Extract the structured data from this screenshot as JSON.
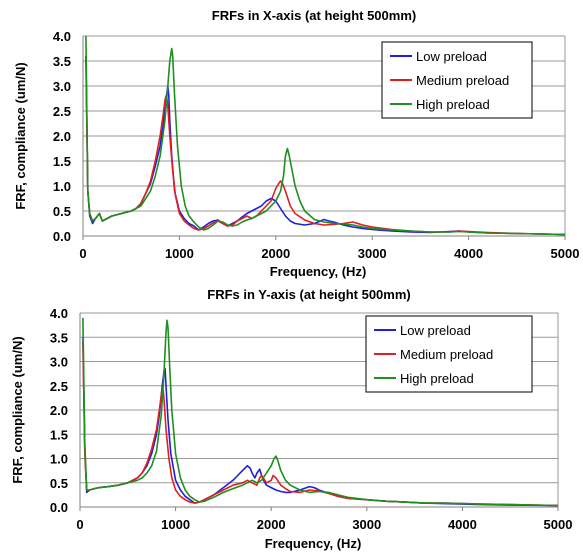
{
  "chart_data": [
    {
      "type": "line",
      "title": "FRFs in X-axis (at height 500mm)",
      "xlabel": "Frequency, (Hz)",
      "ylabel": "FRF, compliance (um/N)",
      "xlim": [
        0,
        5000
      ],
      "ylim": [
        0,
        4.0
      ],
      "xticks": [
        "0",
        "1000",
        "2000",
        "3000",
        "4000",
        "5000"
      ],
      "yticks": [
        "0.0",
        "0.5",
        "1.0",
        "1.5",
        "2.0",
        "2.5",
        "3.0",
        "3.5",
        "4.0"
      ],
      "grid": "horizontal",
      "legend": "top-right",
      "series": [
        {
          "name": "Low preload",
          "color": "#1f1fe0",
          "x": [
            30,
            50,
            70,
            100,
            130,
            170,
            200,
            250,
            300,
            400,
            500,
            550,
            600,
            650,
            700,
            750,
            800,
            830,
            860,
            880,
            890,
            900,
            920,
            950,
            1000,
            1050,
            1100,
            1150,
            1200,
            1250,
            1300,
            1350,
            1400,
            1450,
            1500,
            1550,
            1600,
            1650,
            1700,
            1750,
            1800,
            1850,
            1900,
            1950,
            2000,
            2050,
            2100,
            2150,
            2200,
            2300,
            2400,
            2500,
            2550,
            2600,
            2700,
            2800,
            2900,
            3000,
            3200,
            3400,
            3600,
            3800,
            3900,
            4000,
            4200,
            4500,
            5000
          ],
          "y": [
            3.6,
            0.9,
            0.4,
            0.25,
            0.35,
            0.45,
            0.3,
            0.35,
            0.4,
            0.45,
            0.5,
            0.55,
            0.65,
            0.85,
            1.05,
            1.4,
            1.8,
            2.2,
            2.7,
            3.0,
            2.8,
            2.3,
            1.6,
            0.9,
            0.5,
            0.35,
            0.25,
            0.2,
            0.12,
            0.18,
            0.25,
            0.3,
            0.32,
            0.25,
            0.2,
            0.25,
            0.3,
            0.38,
            0.45,
            0.5,
            0.55,
            0.6,
            0.7,
            0.75,
            0.7,
            0.55,
            0.4,
            0.3,
            0.25,
            0.22,
            0.25,
            0.33,
            0.3,
            0.28,
            0.22,
            0.18,
            0.15,
            0.13,
            0.1,
            0.08,
            0.07,
            0.09,
            0.1,
            0.08,
            0.06,
            0.05,
            0.03
          ]
        },
        {
          "name": "Medium preload",
          "color": "#e01f1f",
          "x": [
            30,
            50,
            70,
            100,
            130,
            170,
            200,
            250,
            300,
            400,
            500,
            550,
            600,
            650,
            700,
            750,
            800,
            830,
            850,
            860,
            870,
            880,
            900,
            930,
            960,
            1000,
            1050,
            1100,
            1150,
            1200,
            1250,
            1300,
            1350,
            1400,
            1450,
            1500,
            1550,
            1600,
            1650,
            1700,
            1750,
            1800,
            1850,
            1900,
            1950,
            2000,
            2030,
            2050,
            2070,
            2100,
            2150,
            2200,
            2300,
            2400,
            2500,
            2600,
            2700,
            2800,
            2900,
            3000,
            3200,
            3400,
            3600,
            3800,
            3900,
            4000,
            4200,
            4500,
            5000
          ],
          "y": [
            3.6,
            0.9,
            0.45,
            0.3,
            0.35,
            0.45,
            0.3,
            0.35,
            0.4,
            0.45,
            0.5,
            0.55,
            0.65,
            0.85,
            1.1,
            1.5,
            2.0,
            2.4,
            2.7,
            2.8,
            2.75,
            2.6,
            2.0,
            1.3,
            0.8,
            0.45,
            0.3,
            0.22,
            0.15,
            0.12,
            0.15,
            0.2,
            0.26,
            0.3,
            0.25,
            0.2,
            0.22,
            0.3,
            0.35,
            0.4,
            0.35,
            0.4,
            0.5,
            0.6,
            0.7,
            0.95,
            1.05,
            1.1,
            1.05,
            0.9,
            0.6,
            0.45,
            0.32,
            0.25,
            0.22,
            0.23,
            0.25,
            0.28,
            0.22,
            0.18,
            0.13,
            0.1,
            0.08,
            0.08,
            0.1,
            0.09,
            0.07,
            0.05,
            0.03
          ]
        },
        {
          "name": "High preload",
          "color": "#1f8f1f",
          "x": [
            30,
            50,
            70,
            100,
            130,
            170,
            200,
            250,
            300,
            400,
            500,
            550,
            600,
            650,
            700,
            750,
            800,
            850,
            880,
            900,
            920,
            930,
            950,
            980,
            1020,
            1060,
            1100,
            1150,
            1200,
            1250,
            1300,
            1350,
            1400,
            1450,
            1500,
            1550,
            1600,
            1650,
            1700,
            1750,
            1800,
            1850,
            1900,
            1950,
            2000,
            2050,
            2080,
            2100,
            2120,
            2140,
            2170,
            2200,
            2250,
            2300,
            2400,
            2500,
            2600,
            2700,
            2800,
            2900,
            3000,
            3200,
            3400,
            3600,
            3800,
            3900,
            4000,
            4200,
            4500,
            5000
          ],
          "y": [
            4.0,
            0.9,
            0.45,
            0.3,
            0.35,
            0.45,
            0.3,
            0.35,
            0.4,
            0.45,
            0.5,
            0.55,
            0.6,
            0.75,
            0.9,
            1.2,
            1.6,
            2.3,
            3.0,
            3.5,
            3.75,
            3.6,
            2.8,
            1.8,
            1.0,
            0.6,
            0.4,
            0.28,
            0.18,
            0.12,
            0.15,
            0.22,
            0.3,
            0.28,
            0.22,
            0.2,
            0.22,
            0.28,
            0.32,
            0.35,
            0.4,
            0.45,
            0.5,
            0.6,
            0.7,
            0.9,
            1.2,
            1.6,
            1.75,
            1.6,
            1.3,
            1.0,
            0.7,
            0.5,
            0.33,
            0.28,
            0.25,
            0.24,
            0.22,
            0.18,
            0.15,
            0.12,
            0.1,
            0.08,
            0.08,
            0.09,
            0.08,
            0.06,
            0.05,
            0.03
          ]
        }
      ]
    },
    {
      "type": "line",
      "title": "FRFs in Y-axis (at height 500mm)",
      "xlabel": "Frequency, (Hz)",
      "ylabel": "FRF, compliance (um/N)",
      "xlim": [
        0,
        5000
      ],
      "ylim": [
        0,
        4.0
      ],
      "xticks": [
        "0",
        "1000",
        "2000",
        "3000",
        "4000",
        "5000"
      ],
      "yticks": [
        "0.0",
        "0.5",
        "1.0",
        "1.5",
        "2.0",
        "2.5",
        "3.0",
        "3.5",
        "4.0"
      ],
      "grid": "horizontal",
      "legend": "top-right",
      "series": [
        {
          "name": "Low preload",
          "color": "#1f1fe0",
          "x": [
            30,
            50,
            70,
            100,
            150,
            200,
            300,
            400,
            500,
            600,
            650,
            700,
            750,
            800,
            830,
            860,
            880,
            890,
            900,
            920,
            950,
            1000,
            1050,
            1100,
            1150,
            1200,
            1250,
            1300,
            1400,
            1500,
            1600,
            1650,
            1700,
            1750,
            1780,
            1800,
            1830,
            1850,
            1880,
            1900,
            1920,
            1950,
            2000,
            2050,
            2100,
            2150,
            2200,
            2300,
            2400,
            2450,
            2500,
            2600,
            2700,
            2800,
            3000,
            3200,
            3400,
            3600,
            3800,
            4000,
            4200,
            4500,
            5000
          ],
          "y": [
            3.5,
            1.2,
            0.3,
            0.35,
            0.38,
            0.4,
            0.42,
            0.45,
            0.5,
            0.6,
            0.7,
            0.85,
            1.1,
            1.5,
            1.9,
            2.5,
            2.8,
            2.85,
            2.5,
            1.8,
            1.1,
            0.55,
            0.35,
            0.22,
            0.15,
            0.08,
            0.1,
            0.15,
            0.25,
            0.4,
            0.55,
            0.65,
            0.75,
            0.85,
            0.8,
            0.7,
            0.6,
            0.7,
            0.78,
            0.65,
            0.55,
            0.45,
            0.4,
            0.35,
            0.32,
            0.3,
            0.3,
            0.35,
            0.42,
            0.4,
            0.35,
            0.28,
            0.22,
            0.18,
            0.15,
            0.12,
            0.1,
            0.08,
            0.07,
            0.06,
            0.05,
            0.04,
            0.03
          ]
        },
        {
          "name": "Medium preload",
          "color": "#e01f1f",
          "x": [
            30,
            50,
            70,
            100,
            150,
            200,
            300,
            400,
            500,
            600,
            650,
            700,
            750,
            800,
            830,
            850,
            860,
            870,
            880,
            900,
            930,
            960,
            1000,
            1050,
            1100,
            1150,
            1200,
            1250,
            1300,
            1400,
            1500,
            1600,
            1700,
            1750,
            1800,
            1850,
            1880,
            1900,
            1950,
            2000,
            2020,
            2050,
            2100,
            2150,
            2200,
            2300,
            2400,
            2500,
            2600,
            2700,
            2800,
            3000,
            3200,
            3400,
            3600,
            3800,
            4000,
            4200,
            4500,
            5000
          ],
          "y": [
            3.4,
            1.1,
            0.35,
            0.35,
            0.38,
            0.4,
            0.42,
            0.45,
            0.5,
            0.6,
            0.7,
            0.9,
            1.2,
            1.6,
            2.0,
            2.3,
            2.45,
            2.4,
            2.2,
            1.6,
            1.0,
            0.6,
            0.35,
            0.22,
            0.15,
            0.1,
            0.08,
            0.1,
            0.15,
            0.25,
            0.35,
            0.45,
            0.5,
            0.55,
            0.5,
            0.45,
            0.6,
            0.65,
            0.5,
            0.55,
            0.65,
            0.6,
            0.45,
            0.38,
            0.32,
            0.3,
            0.35,
            0.33,
            0.28,
            0.22,
            0.18,
            0.15,
            0.12,
            0.1,
            0.08,
            0.08,
            0.07,
            0.06,
            0.05,
            0.03
          ]
        },
        {
          "name": "High preload",
          "color": "#1f8f1f",
          "x": [
            30,
            50,
            70,
            100,
            150,
            200,
            300,
            400,
            500,
            600,
            650,
            700,
            750,
            800,
            850,
            880,
            900,
            910,
            920,
            940,
            960,
            1000,
            1050,
            1100,
            1150,
            1200,
            1250,
            1300,
            1400,
            1500,
            1600,
            1700,
            1750,
            1800,
            1850,
            1900,
            1950,
            2000,
            2030,
            2050,
            2070,
            2100,
            2150,
            2200,
            2300,
            2400,
            2500,
            2600,
            2700,
            2800,
            3000,
            3200,
            3400,
            3600,
            3800,
            4000,
            4200,
            4500,
            5000
          ],
          "y": [
            3.9,
            1.3,
            0.35,
            0.35,
            0.38,
            0.4,
            0.42,
            0.45,
            0.5,
            0.55,
            0.6,
            0.7,
            0.85,
            1.15,
            1.9,
            2.8,
            3.6,
            3.85,
            3.7,
            2.8,
            2.0,
            1.1,
            0.6,
            0.35,
            0.22,
            0.15,
            0.1,
            0.12,
            0.2,
            0.3,
            0.38,
            0.45,
            0.5,
            0.55,
            0.5,
            0.55,
            0.7,
            0.85,
            1.0,
            1.05,
            0.95,
            0.75,
            0.55,
            0.45,
            0.35,
            0.3,
            0.32,
            0.3,
            0.25,
            0.2,
            0.15,
            0.12,
            0.1,
            0.08,
            0.08,
            0.07,
            0.06,
            0.05,
            0.03
          ]
        }
      ]
    }
  ]
}
